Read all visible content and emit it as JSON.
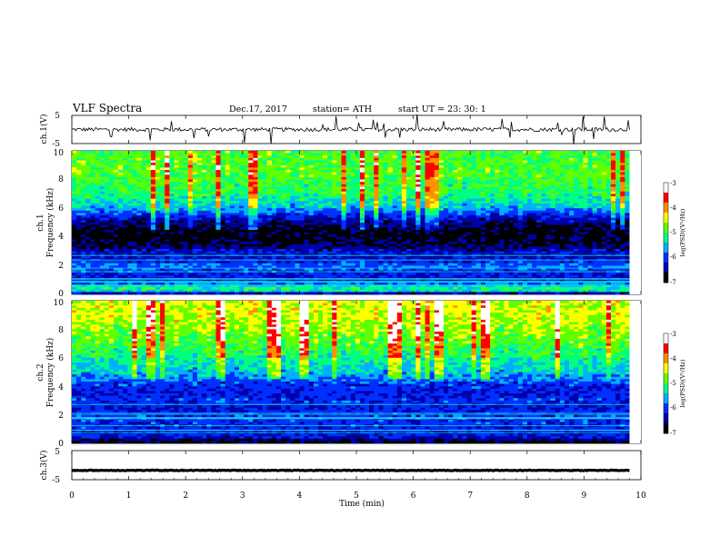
{
  "header": {
    "title": "VLF  Spectra",
    "date": "Dec.17, 2017",
    "station": "station= ATH",
    "start": "start  UT  =    23: 30: 1"
  },
  "chart_data": [
    {
      "type": "line",
      "panel": "ch1-waveform",
      "ylabel": "ch.1(V)",
      "yticks": [
        "5",
        "-5"
      ],
      "ylim": [
        -5,
        5
      ],
      "xlim": [
        0,
        10
      ],
      "x_end": 9.8,
      "baseline": 0
    },
    {
      "type": "heatmap",
      "panel": "ch1-spectrogram",
      "ylabel": "ch.1\nFrequency  (kHz)",
      "ylabel_line1": "ch.1",
      "ylabel_line2": "Frequency  (kHz)",
      "yticks": [
        "0",
        "2",
        "4",
        "6",
        "8",
        "10"
      ],
      "ylim": [
        0,
        10
      ],
      "xlim": [
        0,
        10
      ],
      "x_end": 9.8,
      "colorbar": {
        "label": "log(PSD)(V²/Hz)",
        "ticks": [
          "-3",
          "-4",
          "-5",
          "-6",
          "-7"
        ],
        "range": [
          -7,
          -3
        ],
        "colors": [
          "#000000",
          "#0000aa",
          "#0030ff",
          "#00b0ff",
          "#00ff80",
          "#60ff00",
          "#ffff00",
          "#ff9000",
          "#ff0000",
          "#ffffff"
        ]
      },
      "profile_logpsd": [
        {
          "f": 0.0,
          "v": -6.9
        },
        {
          "f": 0.3,
          "v": -5.0
        },
        {
          "f": 0.6,
          "v": -5.5
        },
        {
          "f": 1.0,
          "v": -6.3
        },
        {
          "f": 1.5,
          "v": -6.1
        },
        {
          "f": 2.0,
          "v": -5.8
        },
        {
          "f": 2.5,
          "v": -6.3
        },
        {
          "f": 3.0,
          "v": -6.3
        },
        {
          "f": 3.5,
          "v": -6.7
        },
        {
          "f": 4.5,
          "v": -6.8
        },
        {
          "f": 5.2,
          "v": -6.4
        },
        {
          "f": 6.0,
          "v": -5.6
        },
        {
          "f": 7.0,
          "v": -5.1
        },
        {
          "f": 8.5,
          "v": -4.9
        },
        {
          "f": 10.0,
          "v": -4.9
        }
      ]
    },
    {
      "type": "heatmap",
      "panel": "ch2-spectrogram",
      "ylabel": "ch.2\nFrequency  (kHz)",
      "ylabel_line1": "ch.2",
      "ylabel_line2": "Frequency  (kHz)",
      "yticks": [
        "0",
        "2",
        "4",
        "6",
        "8",
        "10"
      ],
      "ylim": [
        0,
        10
      ],
      "xlim": [
        0,
        10
      ],
      "x_end": 9.8,
      "colorbar": {
        "label": "log(PSD)(V²/Hz)",
        "ticks": [
          "-3",
          "-4",
          "-5",
          "-6",
          "-7"
        ],
        "range": [
          -7,
          -3
        ],
        "colors": [
          "#000000",
          "#0000aa",
          "#0030ff",
          "#00b0ff",
          "#00ff80",
          "#60ff00",
          "#ffff00",
          "#ff9000",
          "#ff0000",
          "#ffffff"
        ]
      },
      "profile_logpsd": [
        {
          "f": 0.0,
          "v": -6.9
        },
        {
          "f": 0.5,
          "v": -6.2
        },
        {
          "f": 1.0,
          "v": -6.1
        },
        {
          "f": 1.8,
          "v": -6.0
        },
        {
          "f": 2.5,
          "v": -6.2
        },
        {
          "f": 3.0,
          "v": -6.0
        },
        {
          "f": 3.5,
          "v": -6.2
        },
        {
          "f": 4.2,
          "v": -6.0
        },
        {
          "f": 4.8,
          "v": -5.6
        },
        {
          "f": 6.0,
          "v": -5.2
        },
        {
          "f": 7.5,
          "v": -4.8
        },
        {
          "f": 9.0,
          "v": -4.5
        },
        {
          "f": 10.0,
          "v": -4.5
        }
      ]
    },
    {
      "type": "line",
      "panel": "ch3-waveform",
      "ylabel": "ch.3(V)",
      "yticks": [
        "5",
        "-5"
      ],
      "ylim": [
        -5,
        5
      ],
      "xlim": [
        0,
        10
      ],
      "x_end": 9.8,
      "baseline": -1.8
    }
  ],
  "xaxis": {
    "label": "Time  (min)",
    "ticks": [
      "0",
      "1",
      "2",
      "3",
      "4",
      "5",
      "6",
      "7",
      "8",
      "9",
      "10"
    ]
  }
}
